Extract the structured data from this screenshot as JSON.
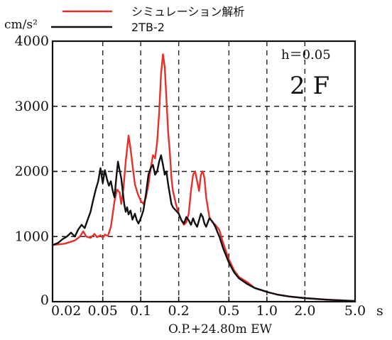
{
  "chart_data": {
    "type": "line",
    "title": "",
    "xlabel": "O.P.+24.80m EW",
    "ylabel": "cm/s²",
    "x_unit": "s",
    "x_scale": "log",
    "xlim": [
      0.02,
      5.0
    ],
    "ylim": [
      0,
      4000
    ],
    "grid": true,
    "legend_position": "top-left, above plot",
    "annotations": {
      "damping": "h＝0.05",
      "floor": "2 F"
    },
    "x_ticks": [
      {
        "value": 0.02,
        "label": "0.02"
      },
      {
        "value": 0.05,
        "label": "0.05"
      },
      {
        "value": 0.1,
        "label": "0.1"
      },
      {
        "value": 0.2,
        "label": "0.2"
      },
      {
        "value": 0.5,
        "label": "0.5"
      },
      {
        "value": 1.0,
        "label": "1.0"
      },
      {
        "value": 2.0,
        "label": "2.0"
      },
      {
        "value": 5.0,
        "label": "5.0"
      }
    ],
    "y_ticks": [
      {
        "value": 0,
        "label": "0"
      },
      {
        "value": 1000,
        "label": "1000"
      },
      {
        "value": 2000,
        "label": "2000"
      },
      {
        "value": 3000,
        "label": "3000"
      },
      {
        "value": 4000,
        "label": "4000"
      }
    ],
    "series": [
      {
        "name": "シミュレーション解析",
        "color": "#e8302a",
        "points": [
          [
            0.02,
            870
          ],
          [
            0.025,
            890
          ],
          [
            0.03,
            940
          ],
          [
            0.033,
            1000
          ],
          [
            0.035,
            1080
          ],
          [
            0.037,
            1000
          ],
          [
            0.04,
            980
          ],
          [
            0.043,
            1040
          ],
          [
            0.045,
            990
          ],
          [
            0.048,
            1020
          ],
          [
            0.05,
            980
          ],
          [
            0.052,
            1030
          ],
          [
            0.055,
            1010
          ],
          [
            0.058,
            1150
          ],
          [
            0.06,
            1350
          ],
          [
            0.062,
            1550
          ],
          [
            0.065,
            1720
          ],
          [
            0.068,
            1680
          ],
          [
            0.07,
            1500
          ],
          [
            0.073,
            1750
          ],
          [
            0.076,
            2150
          ],
          [
            0.08,
            2550
          ],
          [
            0.083,
            2350
          ],
          [
            0.086,
            2100
          ],
          [
            0.09,
            1800
          ],
          [
            0.095,
            1650
          ],
          [
            0.1,
            1550
          ],
          [
            0.105,
            1500
          ],
          [
            0.11,
            1600
          ],
          [
            0.115,
            1800
          ],
          [
            0.12,
            2050
          ],
          [
            0.125,
            2250
          ],
          [
            0.13,
            2200
          ],
          [
            0.135,
            2450
          ],
          [
            0.14,
            2900
          ],
          [
            0.145,
            3500
          ],
          [
            0.15,
            3800
          ],
          [
            0.155,
            3600
          ],
          [
            0.16,
            3100
          ],
          [
            0.165,
            2600
          ],
          [
            0.17,
            2300
          ],
          [
            0.175,
            1900
          ],
          [
            0.18,
            1700
          ],
          [
            0.19,
            1500
          ],
          [
            0.2,
            1350
          ],
          [
            0.21,
            1250
          ],
          [
            0.22,
            1180
          ],
          [
            0.23,
            1220
          ],
          [
            0.24,
            1350
          ],
          [
            0.25,
            1700
          ],
          [
            0.26,
            1950
          ],
          [
            0.27,
            2000
          ],
          [
            0.28,
            1850
          ],
          [
            0.29,
            1700
          ],
          [
            0.3,
            1950
          ],
          [
            0.31,
            2000
          ],
          [
            0.32,
            1900
          ],
          [
            0.33,
            1600
          ],
          [
            0.35,
            1300
          ],
          [
            0.37,
            1220
          ],
          [
            0.39,
            1180
          ],
          [
            0.42,
            1100
          ],
          [
            0.45,
            900
          ],
          [
            0.5,
            650
          ],
          [
            0.55,
            480
          ],
          [
            0.6,
            380
          ],
          [
            0.7,
            300
          ],
          [
            0.8,
            210
          ],
          [
            1.0,
            150
          ],
          [
            1.2,
            110
          ],
          [
            1.5,
            80
          ],
          [
            2.0,
            55
          ],
          [
            3.0,
            30
          ],
          [
            5.0,
            10
          ]
        ]
      },
      {
        "name": "2TB-2",
        "color": "#111111",
        "points": [
          [
            0.02,
            870
          ],
          [
            0.022,
            900
          ],
          [
            0.024,
            960
          ],
          [
            0.026,
            1000
          ],
          [
            0.028,
            1060
          ],
          [
            0.03,
            1000
          ],
          [
            0.032,
            1110
          ],
          [
            0.034,
            1180
          ],
          [
            0.036,
            1130
          ],
          [
            0.038,
            1260
          ],
          [
            0.04,
            1380
          ],
          [
            0.042,
            1560
          ],
          [
            0.044,
            1720
          ],
          [
            0.046,
            1850
          ],
          [
            0.048,
            2050
          ],
          [
            0.05,
            1820
          ],
          [
            0.052,
            2020
          ],
          [
            0.054,
            1880
          ],
          [
            0.056,
            1780
          ],
          [
            0.058,
            1850
          ],
          [
            0.06,
            1700
          ],
          [
            0.062,
            1600
          ],
          [
            0.064,
            1900
          ],
          [
            0.066,
            2150
          ],
          [
            0.068,
            2020
          ],
          [
            0.07,
            1900
          ],
          [
            0.072,
            1700
          ],
          [
            0.074,
            1500
          ],
          [
            0.076,
            1380
          ],
          [
            0.078,
            1450
          ],
          [
            0.08,
            1340
          ],
          [
            0.083,
            1400
          ],
          [
            0.086,
            1260
          ],
          [
            0.09,
            1350
          ],
          [
            0.093,
            1250
          ],
          [
            0.096,
            1200
          ],
          [
            0.1,
            1280
          ],
          [
            0.105,
            1400
          ],
          [
            0.11,
            1650
          ],
          [
            0.115,
            1950
          ],
          [
            0.12,
            2050
          ],
          [
            0.125,
            2100
          ],
          [
            0.13,
            1950
          ],
          [
            0.135,
            2000
          ],
          [
            0.14,
            2150
          ],
          [
            0.145,
            2250
          ],
          [
            0.15,
            2100
          ],
          [
            0.155,
            1950
          ],
          [
            0.16,
            2000
          ],
          [
            0.165,
            1800
          ],
          [
            0.17,
            1650
          ],
          [
            0.175,
            1500
          ],
          [
            0.18,
            1450
          ],
          [
            0.19,
            1400
          ],
          [
            0.2,
            1350
          ],
          [
            0.21,
            1250
          ],
          [
            0.22,
            1200
          ],
          [
            0.23,
            1300
          ],
          [
            0.24,
            1250
          ],
          [
            0.25,
            1180
          ],
          [
            0.26,
            1280
          ],
          [
            0.27,
            1200
          ],
          [
            0.28,
            1150
          ],
          [
            0.29,
            1250
          ],
          [
            0.3,
            1350
          ],
          [
            0.31,
            1300
          ],
          [
            0.32,
            1200
          ],
          [
            0.33,
            1150
          ],
          [
            0.35,
            1280
          ],
          [
            0.37,
            1230
          ],
          [
            0.39,
            1150
          ],
          [
            0.42,
            1000
          ],
          [
            0.45,
            820
          ],
          [
            0.5,
            600
          ],
          [
            0.55,
            450
          ],
          [
            0.6,
            360
          ],
          [
            0.7,
            270
          ],
          [
            0.8,
            210
          ],
          [
            1.0,
            150
          ],
          [
            1.2,
            110
          ],
          [
            1.5,
            80
          ],
          [
            2.0,
            55
          ],
          [
            3.0,
            30
          ],
          [
            5.0,
            10
          ]
        ]
      }
    ]
  }
}
